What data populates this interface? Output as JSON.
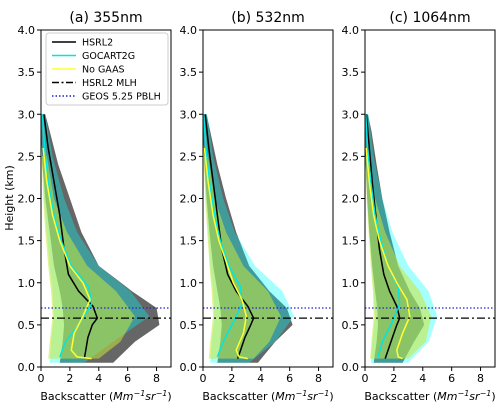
{
  "chart_data": [
    {
      "type": "line",
      "title": "(a) 355nm",
      "xlabel": "Backscatter (Mm⁻¹sr⁻¹)",
      "ylabel": "Height (km)",
      "xlim": [
        0,
        9
      ],
      "ylim": [
        0,
        4
      ],
      "xticks": [
        "0",
        "2",
        "4",
        "6",
        "8"
      ],
      "yticks": [
        "0.0",
        "0.5",
        "1.0",
        "1.5",
        "2.0",
        "2.5",
        "3.0",
        "3.5",
        "4.0"
      ],
      "legend_position": "top-right",
      "series": [
        {
          "name": "HSRL2",
          "color": "#000000",
          "style": "solid",
          "x": [
            3.0,
            3.1,
            3.25,
            3.55,
            3.9,
            3.6,
            2.6,
            1.9,
            1.6,
            1.3,
            0.9,
            0.5,
            0.2
          ],
          "y": [
            0.1,
            0.2,
            0.35,
            0.5,
            0.58,
            0.72,
            0.9,
            1.1,
            1.4,
            1.8,
            2.2,
            2.6,
            3.0
          ]
        },
        {
          "name": "GOCART2G",
          "color": "#00e5e5",
          "style": "solid",
          "x": [
            1.3,
            1.7,
            2.6,
            3.5,
            3.3,
            2.1,
            1.4,
            0.9,
            0.5,
            0.25,
            0.1
          ],
          "y": [
            0.12,
            0.3,
            0.5,
            0.75,
            0.95,
            1.2,
            1.5,
            1.8,
            2.2,
            2.6,
            3.0
          ]
        },
        {
          "name": "No GAAS",
          "color": "#ffff33",
          "style": "solid",
          "x": [
            3.5,
            2.5,
            2.1,
            2.3,
            2.9,
            3.4,
            2.9,
            2.0,
            1.3,
            0.8,
            0.4,
            0.15
          ],
          "y": [
            0.1,
            0.12,
            0.2,
            0.4,
            0.6,
            0.8,
            1.0,
            1.2,
            1.5,
            1.8,
            2.2,
            2.6
          ]
        },
        {
          "name": "HSRL2 MLH",
          "color": "#000000",
          "style": "dashdot",
          "y_value": 0.58
        },
        {
          "name": "GEOS 5.25 PBLH",
          "color": "#2222cc",
          "style": "dotted",
          "y_value": 0.7
        }
      ],
      "bands": [
        {
          "color": "#555555",
          "opacity": 0.9,
          "y": [
            0.05,
            0.3,
            0.5,
            0.7,
            0.9,
            1.2,
            1.6,
            2.0,
            2.4,
            2.8,
            3.0
          ],
          "x_low": [
            1.3,
            1.5,
            1.6,
            1.5,
            1.3,
            0.9,
            0.6,
            0.3,
            0.1,
            0.0,
            0.0
          ],
          "x_high": [
            5.0,
            6.5,
            8.2,
            8.0,
            6.3,
            4.0,
            2.8,
            2.0,
            1.2,
            0.6,
            0.3
          ]
        },
        {
          "color": "#00ffff",
          "opacity": 0.35,
          "y": [
            0.05,
            0.3,
            0.6,
            0.9,
            1.2,
            1.6,
            2.0,
            2.5,
            3.0
          ],
          "x_low": [
            0.6,
            0.7,
            0.9,
            0.8,
            0.6,
            0.4,
            0.2,
            0.1,
            0.0
          ],
          "x_high": [
            3.0,
            5.0,
            7.5,
            6.2,
            4.0,
            2.5,
            1.6,
            0.8,
            0.3
          ]
        },
        {
          "color": "#c8e63a",
          "opacity": 0.55,
          "y": [
            0.1,
            0.3,
            0.6,
            0.9,
            1.2,
            1.6,
            2.0,
            2.5
          ],
          "x_low": [
            0.5,
            0.6,
            0.8,
            0.7,
            0.5,
            0.3,
            0.15,
            0.05
          ],
          "x_high": [
            4.0,
            5.5,
            6.5,
            5.2,
            3.2,
            1.8,
            0.9,
            0.4
          ]
        }
      ]
    },
    {
      "type": "line",
      "title": "(b) 532nm",
      "xlabel": "Backscatter (Mm⁻¹sr⁻¹)",
      "xlim": [
        0,
        9
      ],
      "ylim": [
        0,
        4
      ],
      "xticks": [
        "0",
        "2",
        "4",
        "6",
        "8"
      ],
      "series": [
        {
          "name": "HSRL2",
          "color": "#000000",
          "style": "solid",
          "x": [
            2.4,
            2.6,
            2.9,
            3.3,
            3.5,
            3.1,
            2.3,
            1.7,
            1.3,
            1.0,
            0.7,
            0.4,
            0.15
          ],
          "y": [
            0.1,
            0.2,
            0.35,
            0.5,
            0.58,
            0.72,
            0.9,
            1.1,
            1.4,
            1.8,
            2.2,
            2.6,
            3.0
          ]
        },
        {
          "name": "GOCART2G",
          "color": "#00e5e5",
          "style": "solid",
          "x": [
            1.0,
            1.4,
            2.0,
            2.7,
            2.6,
            1.8,
            1.2,
            0.8,
            0.45,
            0.2,
            0.05
          ],
          "y": [
            0.12,
            0.3,
            0.5,
            0.75,
            0.95,
            1.2,
            1.5,
            1.8,
            2.2,
            2.6,
            3.0
          ]
        },
        {
          "name": "No GAAS",
          "color": "#ffff33",
          "style": "solid",
          "x": [
            3.1,
            2.5,
            2.3,
            2.8,
            3.0,
            2.7,
            2.1,
            1.7,
            1.1,
            0.7,
            0.35,
            0.1
          ],
          "y": [
            0.1,
            0.12,
            0.2,
            0.4,
            0.6,
            0.8,
            1.0,
            1.2,
            1.5,
            1.8,
            2.2,
            2.6
          ]
        },
        {
          "name": "HSRL2 MLH",
          "color": "#000000",
          "style": "dashdot",
          "y_value": 0.58
        },
        {
          "name": "GEOS 5.25 PBLH",
          "color": "#2222cc",
          "style": "dotted",
          "y_value": 0.7
        }
      ],
      "bands": [
        {
          "color": "#555555",
          "opacity": 0.9,
          "y": [
            0.05,
            0.3,
            0.5,
            0.7,
            0.9,
            1.2,
            1.6,
            2.0,
            2.4,
            2.8,
            3.0
          ],
          "x_low": [
            1.0,
            1.2,
            1.3,
            1.2,
            1.0,
            0.7,
            0.45,
            0.25,
            0.1,
            0.0,
            0.0
          ],
          "x_high": [
            3.8,
            5.0,
            6.2,
            5.8,
            4.6,
            3.2,
            2.3,
            1.6,
            1.0,
            0.5,
            0.25
          ]
        },
        {
          "color": "#00ffff",
          "opacity": 0.35,
          "y": [
            0.05,
            0.3,
            0.6,
            0.9,
            1.2,
            1.6,
            2.0,
            2.5,
            3.0
          ],
          "x_low": [
            0.5,
            0.6,
            0.8,
            0.7,
            0.5,
            0.35,
            0.2,
            0.1,
            0.0
          ],
          "x_high": [
            3.2,
            5.0,
            6.3,
            5.5,
            3.6,
            2.2,
            1.4,
            0.7,
            0.3
          ]
        },
        {
          "color": "#c8e63a",
          "opacity": 0.55,
          "y": [
            0.1,
            0.3,
            0.6,
            0.9,
            1.2,
            1.6,
            2.0,
            2.5
          ],
          "x_low": [
            0.4,
            0.5,
            0.7,
            0.6,
            0.45,
            0.3,
            0.15,
            0.05
          ],
          "x_high": [
            3.5,
            4.6,
            5.4,
            4.5,
            2.8,
            1.6,
            0.8,
            0.35
          ]
        }
      ]
    },
    {
      "type": "line",
      "title": "(c) 1064nm",
      "xlabel": "Backscatter (Mm⁻¹sr⁻¹)",
      "xlim": [
        0,
        9
      ],
      "ylim": [
        0,
        4
      ],
      "xticks": [
        "0",
        "2",
        "4",
        "6",
        "8"
      ],
      "series": [
        {
          "name": "HSRL2",
          "color": "#000000",
          "style": "solid",
          "x": [
            1.4,
            1.6,
            1.9,
            2.2,
            2.4,
            2.2,
            1.7,
            1.3,
            1.0,
            0.75,
            0.5,
            0.3,
            0.1
          ],
          "y": [
            0.1,
            0.2,
            0.35,
            0.5,
            0.58,
            0.72,
            0.9,
            1.1,
            1.4,
            1.8,
            2.2,
            2.6,
            3.0
          ]
        },
        {
          "name": "GOCART2G",
          "color": "#00e5e5",
          "style": "solid",
          "x": [
            0.9,
            1.2,
            1.8,
            2.4,
            2.3,
            1.6,
            1.1,
            0.7,
            0.4,
            0.18,
            0.05
          ],
          "y": [
            0.12,
            0.3,
            0.5,
            0.75,
            0.95,
            1.2,
            1.5,
            1.8,
            2.2,
            2.6,
            3.0
          ]
        },
        {
          "name": "No GAAS",
          "color": "#ffff33",
          "style": "solid",
          "x": [
            2.6,
            2.3,
            2.2,
            2.6,
            3.1,
            2.9,
            2.2,
            1.6,
            1.0,
            0.6,
            0.3,
            0.08
          ],
          "y": [
            0.1,
            0.12,
            0.2,
            0.4,
            0.6,
            0.8,
            1.0,
            1.2,
            1.5,
            1.8,
            2.2,
            2.6
          ]
        },
        {
          "name": "HSRL2 MLH",
          "color": "#000000",
          "style": "dashdot",
          "y_value": 0.58
        },
        {
          "name": "GEOS 5.25 PBLH",
          "color": "#2222cc",
          "style": "dotted",
          "y_value": 0.7
        }
      ],
      "bands": [
        {
          "color": "#555555",
          "opacity": 0.9,
          "y": [
            0.05,
            0.3,
            0.5,
            0.7,
            0.9,
            1.2,
            1.6,
            2.0,
            2.4,
            2.8,
            3.0
          ],
          "x_low": [
            0.6,
            0.8,
            0.9,
            0.85,
            0.7,
            0.5,
            0.3,
            0.15,
            0.05,
            0.0,
            0.0
          ],
          "x_high": [
            2.6,
            3.4,
            4.1,
            3.8,
            3.1,
            2.3,
            1.7,
            1.2,
            0.8,
            0.45,
            0.2
          ]
        },
        {
          "color": "#00ffff",
          "opacity": 0.35,
          "y": [
            0.05,
            0.3,
            0.6,
            0.9,
            1.2,
            1.6,
            2.0,
            2.5,
            3.0
          ],
          "x_low": [
            0.4,
            0.5,
            0.7,
            0.6,
            0.45,
            0.3,
            0.15,
            0.05,
            0.0
          ],
          "x_high": [
            3.0,
            4.4,
            5.0,
            4.4,
            3.0,
            1.9,
            1.2,
            0.6,
            0.25
          ]
        },
        {
          "color": "#c8e63a",
          "opacity": 0.55,
          "y": [
            0.1,
            0.3,
            0.6,
            0.9,
            1.2,
            1.6,
            2.0,
            2.5
          ],
          "x_low": [
            0.35,
            0.45,
            0.6,
            0.55,
            0.4,
            0.25,
            0.12,
            0.04
          ],
          "x_high": [
            3.0,
            4.2,
            4.6,
            3.8,
            2.4,
            1.4,
            0.7,
            0.3
          ]
        }
      ]
    }
  ]
}
